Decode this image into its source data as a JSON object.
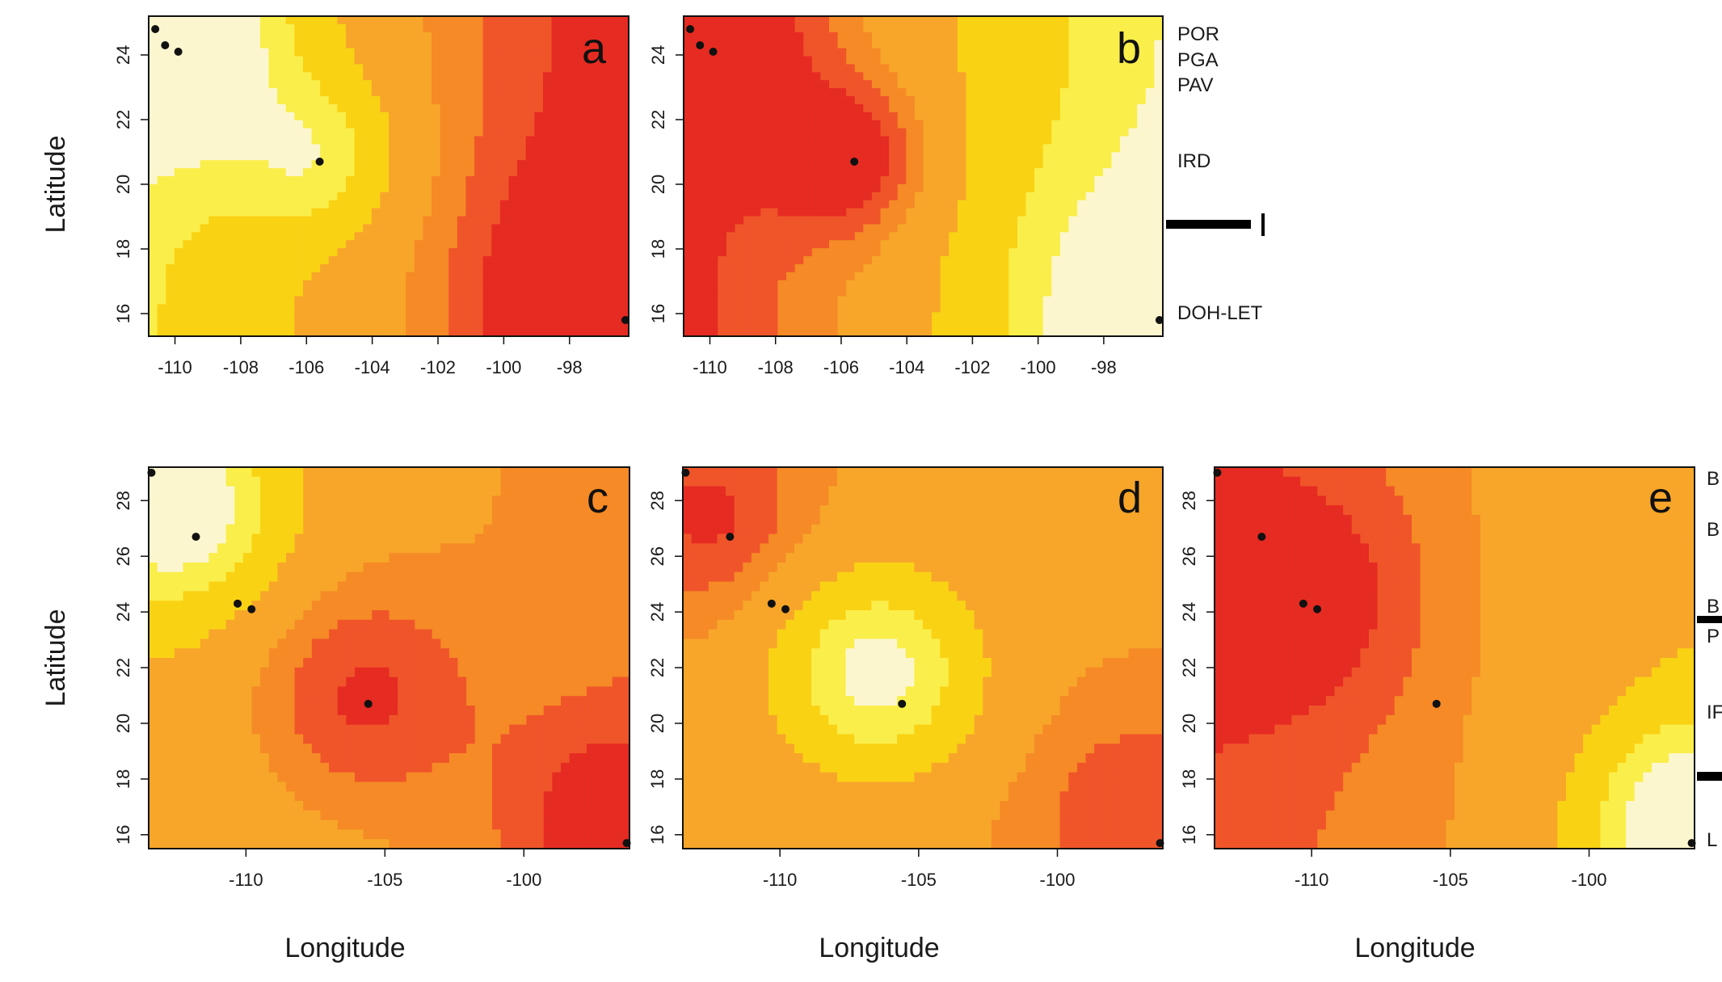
{
  "colors": {
    "very_low": "#e62b22",
    "low": "#f0552a",
    "mid_low": "#f58a26",
    "mid": "#f7a62a",
    "mid_high": "#f9d214",
    "high": "#faee4a",
    "very_high": "#fcf6cf",
    "contour": "#222222",
    "site": "#111111"
  },
  "axis_titles": {
    "x": "Longitude",
    "y": "Latitude"
  },
  "site_labels_top": [
    "POR",
    "PGA",
    "PAV",
    "IRD",
    "DOH-LET"
  ],
  "site_labels_bottom": [
    "B",
    "B",
    "B",
    "P",
    "IF",
    "L"
  ],
  "chart_data": [
    {
      "panel": "a",
      "type": "heatmap",
      "xlabel": "",
      "ylabel": "Latitude",
      "xlim": [
        -110.8,
        -96.2
      ],
      "ylim": [
        15.3,
        25.2
      ],
      "xticks": [
        -110,
        -108,
        -106,
        -104,
        -102,
        -100,
        -98
      ],
      "yticks": [
        16,
        18,
        20,
        22,
        24
      ],
      "contour_levels": [
        0.1,
        0.2,
        0.3,
        0.5,
        0.6,
        0.7,
        0.8,
        0.9
      ],
      "sites": [
        [
          -110.6,
          24.8
        ],
        [
          -110.3,
          24.3
        ],
        [
          -109.9,
          24.1
        ],
        [
          -105.6,
          20.7
        ],
        [
          -96.3,
          15.8
        ]
      ],
      "value_field": {
        "base": 0.35,
        "gradient": {
          "center_lon": -103.5,
          "per_deg_lon": -0.05
        },
        "bumps": [
          {
            "lon": -110.3,
            "lat": 24.4,
            "amp": 0.55,
            "radius": 2.6
          },
          {
            "lon": -105.6,
            "lat": 20.8,
            "amp": 0.35,
            "radius": 1.7
          },
          {
            "lon": -96.5,
            "lat": 15.9,
            "amp": -0.3,
            "radius": 3.0
          }
        ]
      }
    },
    {
      "panel": "b",
      "type": "heatmap",
      "xlabel": "",
      "ylabel": "",
      "xlim": [
        -110.8,
        -96.2
      ],
      "ylim": [
        15.3,
        25.2
      ],
      "xticks": [
        -110,
        -108,
        -106,
        -104,
        -102,
        -100,
        -98
      ],
      "yticks": [
        16,
        18,
        20,
        22,
        24
      ],
      "contour_levels": [
        0.1,
        0.2,
        0.3,
        0.4,
        0.5,
        0.7,
        0.8,
        0.9
      ],
      "sites": [
        [
          -110.6,
          24.8
        ],
        [
          -110.3,
          24.3
        ],
        [
          -109.9,
          24.1
        ],
        [
          -105.6,
          20.7
        ],
        [
          -96.3,
          15.8
        ]
      ],
      "value_field": {
        "base": 0.45,
        "gradient": {
          "center_lon": -103.5,
          "per_deg_lon": 0.055
        },
        "bumps": [
          {
            "lon": -110.3,
            "lat": 24.4,
            "amp": -0.25,
            "radius": 2.6
          },
          {
            "lon": -105.6,
            "lat": 20.8,
            "amp": -0.35,
            "radius": 1.7
          },
          {
            "lon": -96.5,
            "lat": 15.9,
            "amp": 0.35,
            "radius": 3.0
          }
        ]
      }
    },
    {
      "panel": "c",
      "type": "heatmap",
      "xlabel": "Longitude",
      "ylabel": "Latitude",
      "xlim": [
        -113.5,
        -96.2
      ],
      "ylim": [
        15.5,
        29.2
      ],
      "xticks": [
        -110,
        -105,
        -100
      ],
      "yticks": [
        16,
        18,
        20,
        22,
        24,
        26,
        28
      ],
      "contour_levels": [
        0.1,
        0.2,
        0.3,
        0.4,
        0.5,
        0.6,
        0.7,
        0.9
      ],
      "sites": [
        [
          -113.4,
          29.0
        ],
        [
          -111.8,
          26.7
        ],
        [
          -110.3,
          24.3
        ],
        [
          -109.8,
          24.1
        ],
        [
          -105.6,
          20.7
        ],
        [
          -96.3,
          15.7
        ]
      ],
      "value_field": {
        "base": 0.35,
        "gradient": {
          "center_lon": -105.0,
          "per_deg_lon": -0.012
        },
        "bumps": [
          {
            "lon": -112.5,
            "lat": 27.8,
            "amp": 0.6,
            "radius": 2.6
          },
          {
            "lon": -106.0,
            "lat": 21.0,
            "amp": -0.28,
            "radius": 2.8
          },
          {
            "lon": -97.0,
            "lat": 16.5,
            "amp": -0.25,
            "radius": 2.8
          }
        ]
      }
    },
    {
      "panel": "d",
      "type": "heatmap",
      "xlabel": "Longitude",
      "ylabel": "",
      "xlim": [
        -113.5,
        -96.2
      ],
      "ylim": [
        15.5,
        29.2
      ],
      "xticks": [
        -110,
        -105,
        -100
      ],
      "yticks": [
        16,
        18,
        20,
        22,
        24,
        26,
        28
      ],
      "contour_levels": [
        0.1,
        0.2,
        0.3,
        0.4,
        0.5,
        0.7,
        0.8,
        0.9
      ],
      "sites": [
        [
          -113.4,
          29.0
        ],
        [
          -111.8,
          26.7
        ],
        [
          -110.3,
          24.3
        ],
        [
          -109.8,
          24.1
        ],
        [
          -105.6,
          20.7
        ],
        [
          -96.3,
          15.7
        ]
      ],
      "value_field": {
        "base": 0.32,
        "gradient": {
          "center_lon": -105.0,
          "per_deg_lon": 0.0
        },
        "bumps": [
          {
            "lon": -112.6,
            "lat": 27.5,
            "amp": -0.25,
            "radius": 2.4
          },
          {
            "lon": -106.5,
            "lat": 21.8,
            "amp": 0.6,
            "radius": 2.6
          },
          {
            "lon": -97.0,
            "lat": 16.5,
            "amp": -0.22,
            "radius": 2.8
          }
        ]
      }
    },
    {
      "panel": "e",
      "type": "heatmap",
      "xlabel": "Longitude",
      "ylabel": "",
      "xlim": [
        -113.5,
        -96.2
      ],
      "ylim": [
        15.5,
        29.2
      ],
      "xticks": [
        -110,
        -105,
        -100
      ],
      "yticks": [
        16,
        18,
        20,
        22,
        24,
        26,
        28
      ],
      "contour_levels": [
        0.1,
        0.2,
        0.3,
        0.5,
        0.6,
        0.7,
        0.8,
        0.9
      ],
      "sites": [
        [
          -113.4,
          29.0
        ],
        [
          -111.8,
          26.7
        ],
        [
          -110.3,
          24.3
        ],
        [
          -109.8,
          24.1
        ],
        [
          -105.5,
          20.7
        ],
        [
          -96.3,
          15.7
        ]
      ],
      "value_field": {
        "base": 0.3,
        "gradient": {
          "center_lon": -105.0,
          "per_deg_lon": 0.02
        },
        "bumps": [
          {
            "lon": -110.5,
            "lat": 24.5,
            "amp": -0.22,
            "radius": 3.2
          },
          {
            "lon": -96.3,
            "lat": 16.3,
            "amp": 0.65,
            "radius": 2.6
          }
        ]
      }
    }
  ]
}
